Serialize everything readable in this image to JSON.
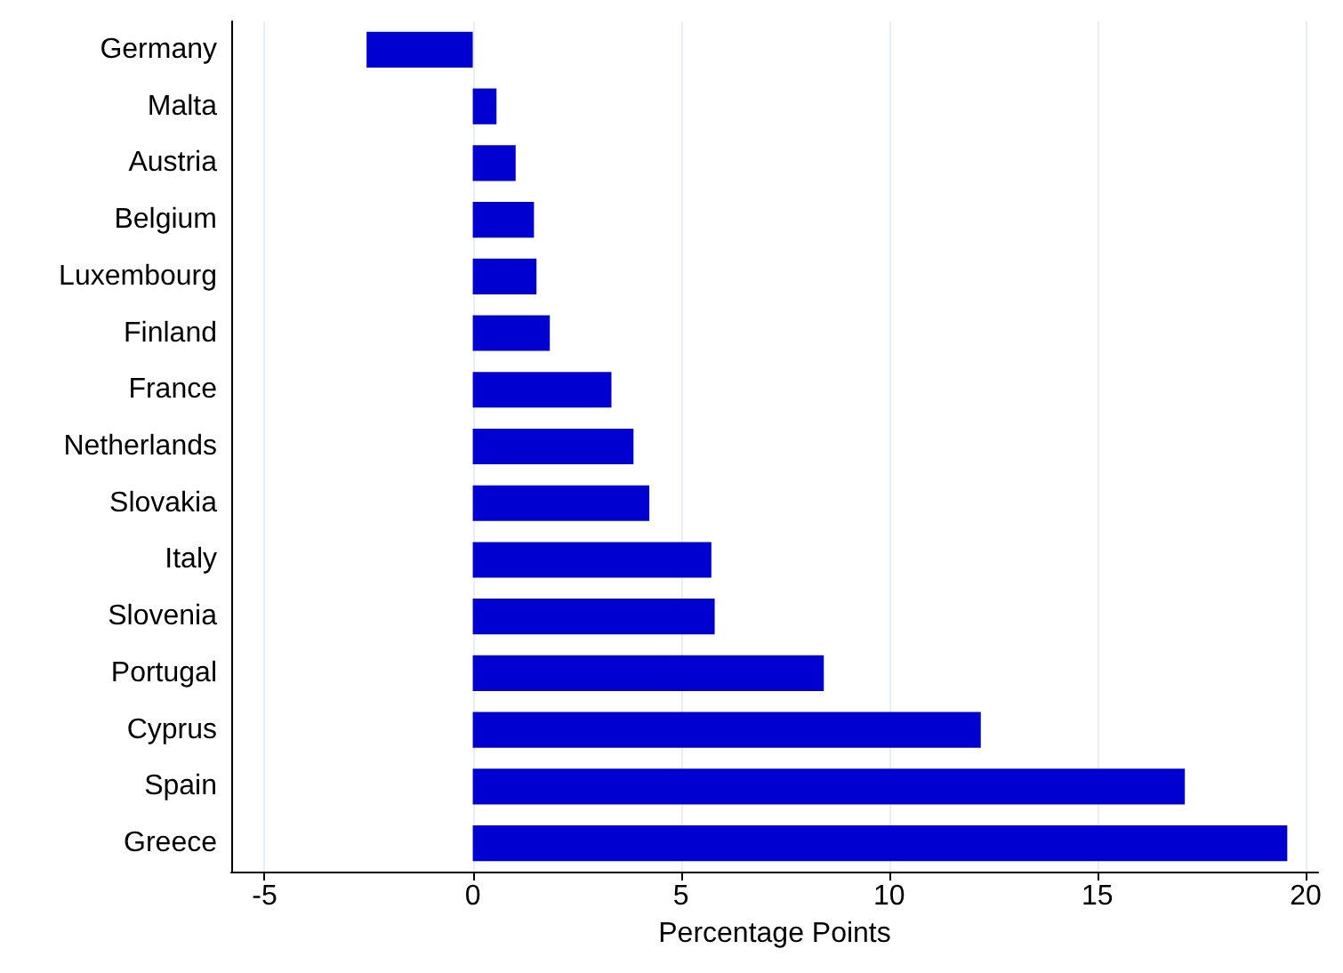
{
  "chart_data": {
    "type": "bar",
    "orientation": "horizontal",
    "xlabel": "Percentage Points",
    "categories": [
      "Germany",
      "Malta",
      "Austria",
      "Belgium",
      "Luxembourg",
      "Finland",
      "France",
      "Netherlands",
      "Slovakia",
      "Italy",
      "Slovenia",
      "Portugal",
      "Cyprus",
      "Spain",
      "Greece"
    ],
    "values": [
      -2.55,
      0.57,
      1.03,
      1.47,
      1.53,
      1.85,
      3.33,
      3.86,
      4.24,
      5.73,
      5.81,
      8.43,
      12.2,
      17.1,
      19.56
    ],
    "color": "#0000d0",
    "xlim": [
      -5.8,
      20.3
    ],
    "xticks": [
      -5,
      0,
      5,
      10,
      15,
      20
    ],
    "grid": "x"
  }
}
